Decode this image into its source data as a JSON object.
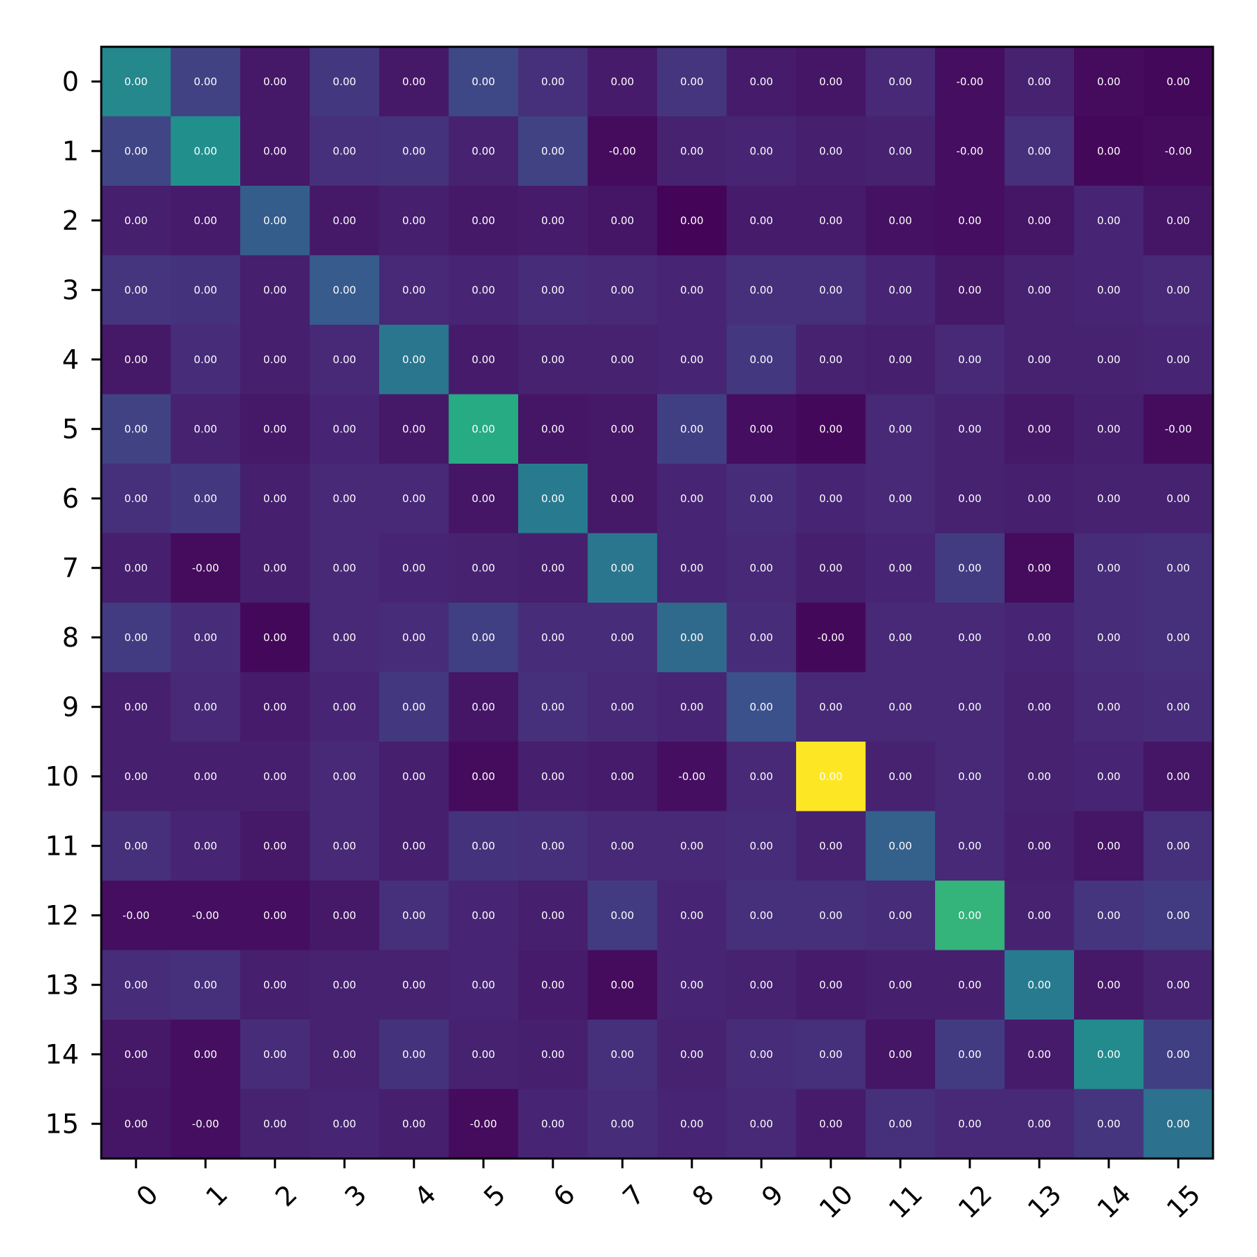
{
  "chart_data": {
    "type": "heatmap",
    "title": "",
    "xlabel": "",
    "ylabel": "",
    "x_categories": [
      "0",
      "1",
      "2",
      "3",
      "4",
      "5",
      "6",
      "7",
      "8",
      "9",
      "10",
      "11",
      "12",
      "13",
      "14",
      "15"
    ],
    "y_categories": [
      "0",
      "1",
      "2",
      "3",
      "4",
      "5",
      "6",
      "7",
      "8",
      "9",
      "10",
      "11",
      "12",
      "13",
      "14",
      "15"
    ],
    "colormap": "viridis",
    "intensity_range": [
      0,
      1
    ],
    "intensity": [
      [
        0.47,
        0.2,
        0.07,
        0.17,
        0.07,
        0.22,
        0.14,
        0.08,
        0.16,
        0.08,
        0.06,
        0.12,
        0.04,
        0.1,
        0.03,
        0.02
      ],
      [
        0.21,
        0.5,
        0.07,
        0.14,
        0.15,
        0.1,
        0.2,
        0.03,
        0.1,
        0.11,
        0.09,
        0.1,
        0.04,
        0.14,
        0.02,
        0.03
      ],
      [
        0.09,
        0.08,
        0.3,
        0.07,
        0.09,
        0.07,
        0.08,
        0.06,
        0.01,
        0.08,
        0.08,
        0.05,
        0.04,
        0.06,
        0.11,
        0.06
      ],
      [
        0.16,
        0.15,
        0.09,
        0.29,
        0.12,
        0.11,
        0.13,
        0.12,
        0.11,
        0.14,
        0.14,
        0.11,
        0.07,
        0.1,
        0.11,
        0.12
      ],
      [
        0.07,
        0.13,
        0.09,
        0.12,
        0.4,
        0.08,
        0.1,
        0.1,
        0.11,
        0.17,
        0.1,
        0.09,
        0.12,
        0.1,
        0.1,
        0.11
      ],
      [
        0.2,
        0.1,
        0.07,
        0.11,
        0.07,
        0.62,
        0.06,
        0.07,
        0.19,
        0.04,
        0.02,
        0.12,
        0.1,
        0.07,
        0.09,
        0.03
      ],
      [
        0.14,
        0.17,
        0.09,
        0.12,
        0.12,
        0.06,
        0.42,
        0.07,
        0.11,
        0.13,
        0.11,
        0.12,
        0.1,
        0.09,
        0.1,
        0.1
      ],
      [
        0.09,
        0.03,
        0.09,
        0.12,
        0.11,
        0.1,
        0.09,
        0.4,
        0.11,
        0.12,
        0.09,
        0.11,
        0.18,
        0.03,
        0.13,
        0.14
      ],
      [
        0.18,
        0.13,
        0.02,
        0.12,
        0.13,
        0.19,
        0.13,
        0.13,
        0.35,
        0.13,
        0.02,
        0.12,
        0.12,
        0.11,
        0.13,
        0.14
      ],
      [
        0.09,
        0.12,
        0.08,
        0.11,
        0.17,
        0.06,
        0.14,
        0.12,
        0.11,
        0.25,
        0.12,
        0.12,
        0.12,
        0.1,
        0.12,
        0.13
      ],
      [
        0.09,
        0.09,
        0.09,
        0.12,
        0.09,
        0.03,
        0.09,
        0.08,
        0.04,
        0.12,
        1.0,
        0.1,
        0.12,
        0.1,
        0.11,
        0.06
      ],
      [
        0.14,
        0.11,
        0.07,
        0.12,
        0.09,
        0.15,
        0.14,
        0.12,
        0.12,
        0.13,
        0.1,
        0.31,
        0.12,
        0.09,
        0.06,
        0.14
      ],
      [
        0.04,
        0.04,
        0.04,
        0.07,
        0.14,
        0.11,
        0.09,
        0.18,
        0.11,
        0.14,
        0.14,
        0.13,
        0.66,
        0.1,
        0.16,
        0.18
      ],
      [
        0.13,
        0.14,
        0.09,
        0.1,
        0.1,
        0.11,
        0.08,
        0.03,
        0.11,
        0.1,
        0.08,
        0.09,
        0.09,
        0.42,
        0.07,
        0.1
      ],
      [
        0.07,
        0.04,
        0.13,
        0.1,
        0.15,
        0.1,
        0.09,
        0.14,
        0.1,
        0.13,
        0.14,
        0.06,
        0.18,
        0.08,
        0.48,
        0.19
      ],
      [
        0.06,
        0.04,
        0.1,
        0.11,
        0.09,
        0.03,
        0.11,
        0.13,
        0.11,
        0.12,
        0.08,
        0.14,
        0.12,
        0.12,
        0.16,
        0.38
      ]
    ],
    "cell_labels": [
      [
        "0.00",
        "0.00",
        "0.00",
        "0.00",
        "0.00",
        "0.00",
        "0.00",
        "0.00",
        "0.00",
        "0.00",
        "0.00",
        "0.00",
        "-0.00",
        "0.00",
        "0.00",
        "0.00"
      ],
      [
        "0.00",
        "0.00",
        "0.00",
        "0.00",
        "0.00",
        "0.00",
        "0.00",
        "-0.00",
        "0.00",
        "0.00",
        "0.00",
        "0.00",
        "-0.00",
        "0.00",
        "0.00",
        "-0.00"
      ],
      [
        "0.00",
        "0.00",
        "0.00",
        "0.00",
        "0.00",
        "0.00",
        "0.00",
        "0.00",
        "0.00",
        "0.00",
        "0.00",
        "0.00",
        "0.00",
        "0.00",
        "0.00",
        "0.00"
      ],
      [
        "0.00",
        "0.00",
        "0.00",
        "0.00",
        "0.00",
        "0.00",
        "0.00",
        "0.00",
        "0.00",
        "0.00",
        "0.00",
        "0.00",
        "0.00",
        "0.00",
        "0.00",
        "0.00"
      ],
      [
        "0.00",
        "0.00",
        "0.00",
        "0.00",
        "0.00",
        "0.00",
        "0.00",
        "0.00",
        "0.00",
        "0.00",
        "0.00",
        "0.00",
        "0.00",
        "0.00",
        "0.00",
        "0.00"
      ],
      [
        "0.00",
        "0.00",
        "0.00",
        "0.00",
        "0.00",
        "0.00",
        "0.00",
        "0.00",
        "0.00",
        "0.00",
        "0.00",
        "0.00",
        "0.00",
        "0.00",
        "0.00",
        "-0.00"
      ],
      [
        "0.00",
        "0.00",
        "0.00",
        "0.00",
        "0.00",
        "0.00",
        "0.00",
        "0.00",
        "0.00",
        "0.00",
        "0.00",
        "0.00",
        "0.00",
        "0.00",
        "0.00",
        "0.00"
      ],
      [
        "0.00",
        "-0.00",
        "0.00",
        "0.00",
        "0.00",
        "0.00",
        "0.00",
        "0.00",
        "0.00",
        "0.00",
        "0.00",
        "0.00",
        "0.00",
        "0.00",
        "0.00",
        "0.00"
      ],
      [
        "0.00",
        "0.00",
        "0.00",
        "0.00",
        "0.00",
        "0.00",
        "0.00",
        "0.00",
        "0.00",
        "0.00",
        "-0.00",
        "0.00",
        "0.00",
        "0.00",
        "0.00",
        "0.00"
      ],
      [
        "0.00",
        "0.00",
        "0.00",
        "0.00",
        "0.00",
        "0.00",
        "0.00",
        "0.00",
        "0.00",
        "0.00",
        "0.00",
        "0.00",
        "0.00",
        "0.00",
        "0.00",
        "0.00"
      ],
      [
        "0.00",
        "0.00",
        "0.00",
        "0.00",
        "0.00",
        "0.00",
        "0.00",
        "0.00",
        "-0.00",
        "0.00",
        "0.00",
        "0.00",
        "0.00",
        "0.00",
        "0.00",
        "0.00"
      ],
      [
        "0.00",
        "0.00",
        "0.00",
        "0.00",
        "0.00",
        "0.00",
        "0.00",
        "0.00",
        "0.00",
        "0.00",
        "0.00",
        "0.00",
        "0.00",
        "0.00",
        "0.00",
        "0.00"
      ],
      [
        "-0.00",
        "-0.00",
        "0.00",
        "0.00",
        "0.00",
        "0.00",
        "0.00",
        "0.00",
        "0.00",
        "0.00",
        "0.00",
        "0.00",
        "0.00",
        "0.00",
        "0.00",
        "0.00"
      ],
      [
        "0.00",
        "0.00",
        "0.00",
        "0.00",
        "0.00",
        "0.00",
        "0.00",
        "0.00",
        "0.00",
        "0.00",
        "0.00",
        "0.00",
        "0.00",
        "0.00",
        "0.00",
        "0.00"
      ],
      [
        "0.00",
        "0.00",
        "0.00",
        "0.00",
        "0.00",
        "0.00",
        "0.00",
        "0.00",
        "0.00",
        "0.00",
        "0.00",
        "0.00",
        "0.00",
        "0.00",
        "0.00",
        "0.00"
      ],
      [
        "0.00",
        "-0.00",
        "0.00",
        "0.00",
        "0.00",
        "-0.00",
        "0.00",
        "0.00",
        "0.00",
        "0.00",
        "0.00",
        "0.00",
        "0.00",
        "0.00",
        "0.00",
        "0.00"
      ]
    ],
    "colorbar": false,
    "grid": false
  }
}
